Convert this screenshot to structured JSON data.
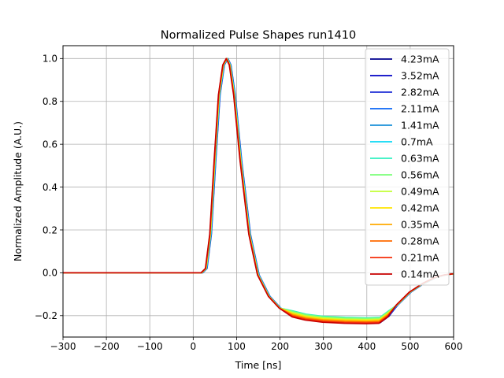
{
  "chart_data": {
    "type": "line",
    "title": "Normalized Pulse Shapes run1410",
    "xlabel": "Time [ns]",
    "ylabel": "Normalized Amplitude (A.U.)",
    "xlim": [
      -300,
      600
    ],
    "ylim": [
      -0.3,
      1.06
    ],
    "xticks": [
      -300,
      -200,
      -100,
      0,
      100,
      200,
      300,
      400,
      500,
      600
    ],
    "xtick_labels": [
      "−300",
      "−200",
      "−100",
      "0",
      "100",
      "200",
      "300",
      "400",
      "500",
      "600"
    ],
    "yticks": [
      -0.2,
      0.0,
      0.2,
      0.4,
      0.6,
      0.8,
      1.0
    ],
    "ytick_labels": [
      "−0.2",
      "0.0",
      "0.2",
      "0.4",
      "0.6",
      "0.8",
      "1.0"
    ],
    "grid": true,
    "legend_position": "right",
    "series": [
      {
        "name": "4.23mA",
        "color": "#00008f",
        "shift": 1.0,
        "floor": -0.235
      },
      {
        "name": "3.52mA",
        "color": "#0000c4",
        "shift": 1.5,
        "floor": -0.232
      },
      {
        "name": "2.82mA",
        "color": "#1f2fd6",
        "shift": 2.0,
        "floor": -0.229
      },
      {
        "name": "2.11mA",
        "color": "#0a64f5",
        "shift": 1.5,
        "floor": -0.224
      },
      {
        "name": "1.41mA",
        "color": "#1a90d8",
        "shift": 1.0,
        "floor": -0.22
      },
      {
        "name": "0.7mA",
        "color": "#0ad8f5",
        "shift": 0.5,
        "floor": -0.212
      },
      {
        "name": "0.63mA",
        "color": "#30f0c0",
        "shift": 0.0,
        "floor": -0.21
      },
      {
        "name": "0.56mA",
        "color": "#7cff7a",
        "shift": 0.0,
        "floor": -0.213
      },
      {
        "name": "0.49mA",
        "color": "#c3ff35",
        "shift": -0.5,
        "floor": -0.218
      },
      {
        "name": "0.42mA",
        "color": "#ffe400",
        "shift": -0.5,
        "floor": -0.222
      },
      {
        "name": "0.35mA",
        "color": "#ffaa00",
        "shift": -1.0,
        "floor": -0.226
      },
      {
        "name": "0.28mA",
        "color": "#ff6a00",
        "shift": -1.5,
        "floor": -0.23
      },
      {
        "name": "0.21mA",
        "color": "#f52e0a",
        "shift": -1.5,
        "floor": -0.234
      },
      {
        "name": "0.14mA",
        "color": "#c80000",
        "shift": -2.0,
        "floor": -0.238
      }
    ],
    "x": [
      -300,
      -200,
      -100,
      0,
      20,
      30,
      40,
      50,
      60,
      70,
      78,
      85,
      95,
      110,
      130,
      150,
      175,
      200,
      230,
      260,
      300,
      350,
      400,
      430,
      450,
      470,
      500,
      530,
      560,
      580,
      600
    ],
    "base_y": [
      0.0,
      0.0,
      0.0,
      0.0,
      0.0,
      0.02,
      0.18,
      0.52,
      0.83,
      0.97,
      1.0,
      0.97,
      0.83,
      0.52,
      0.18,
      -0.01,
      -0.11,
      -0.165,
      -0.2,
      -0.215,
      -0.225,
      -0.23,
      -0.232,
      -0.23,
      -0.2,
      -0.15,
      -0.09,
      -0.05,
      -0.02,
      -0.01,
      -0.005
    ]
  }
}
